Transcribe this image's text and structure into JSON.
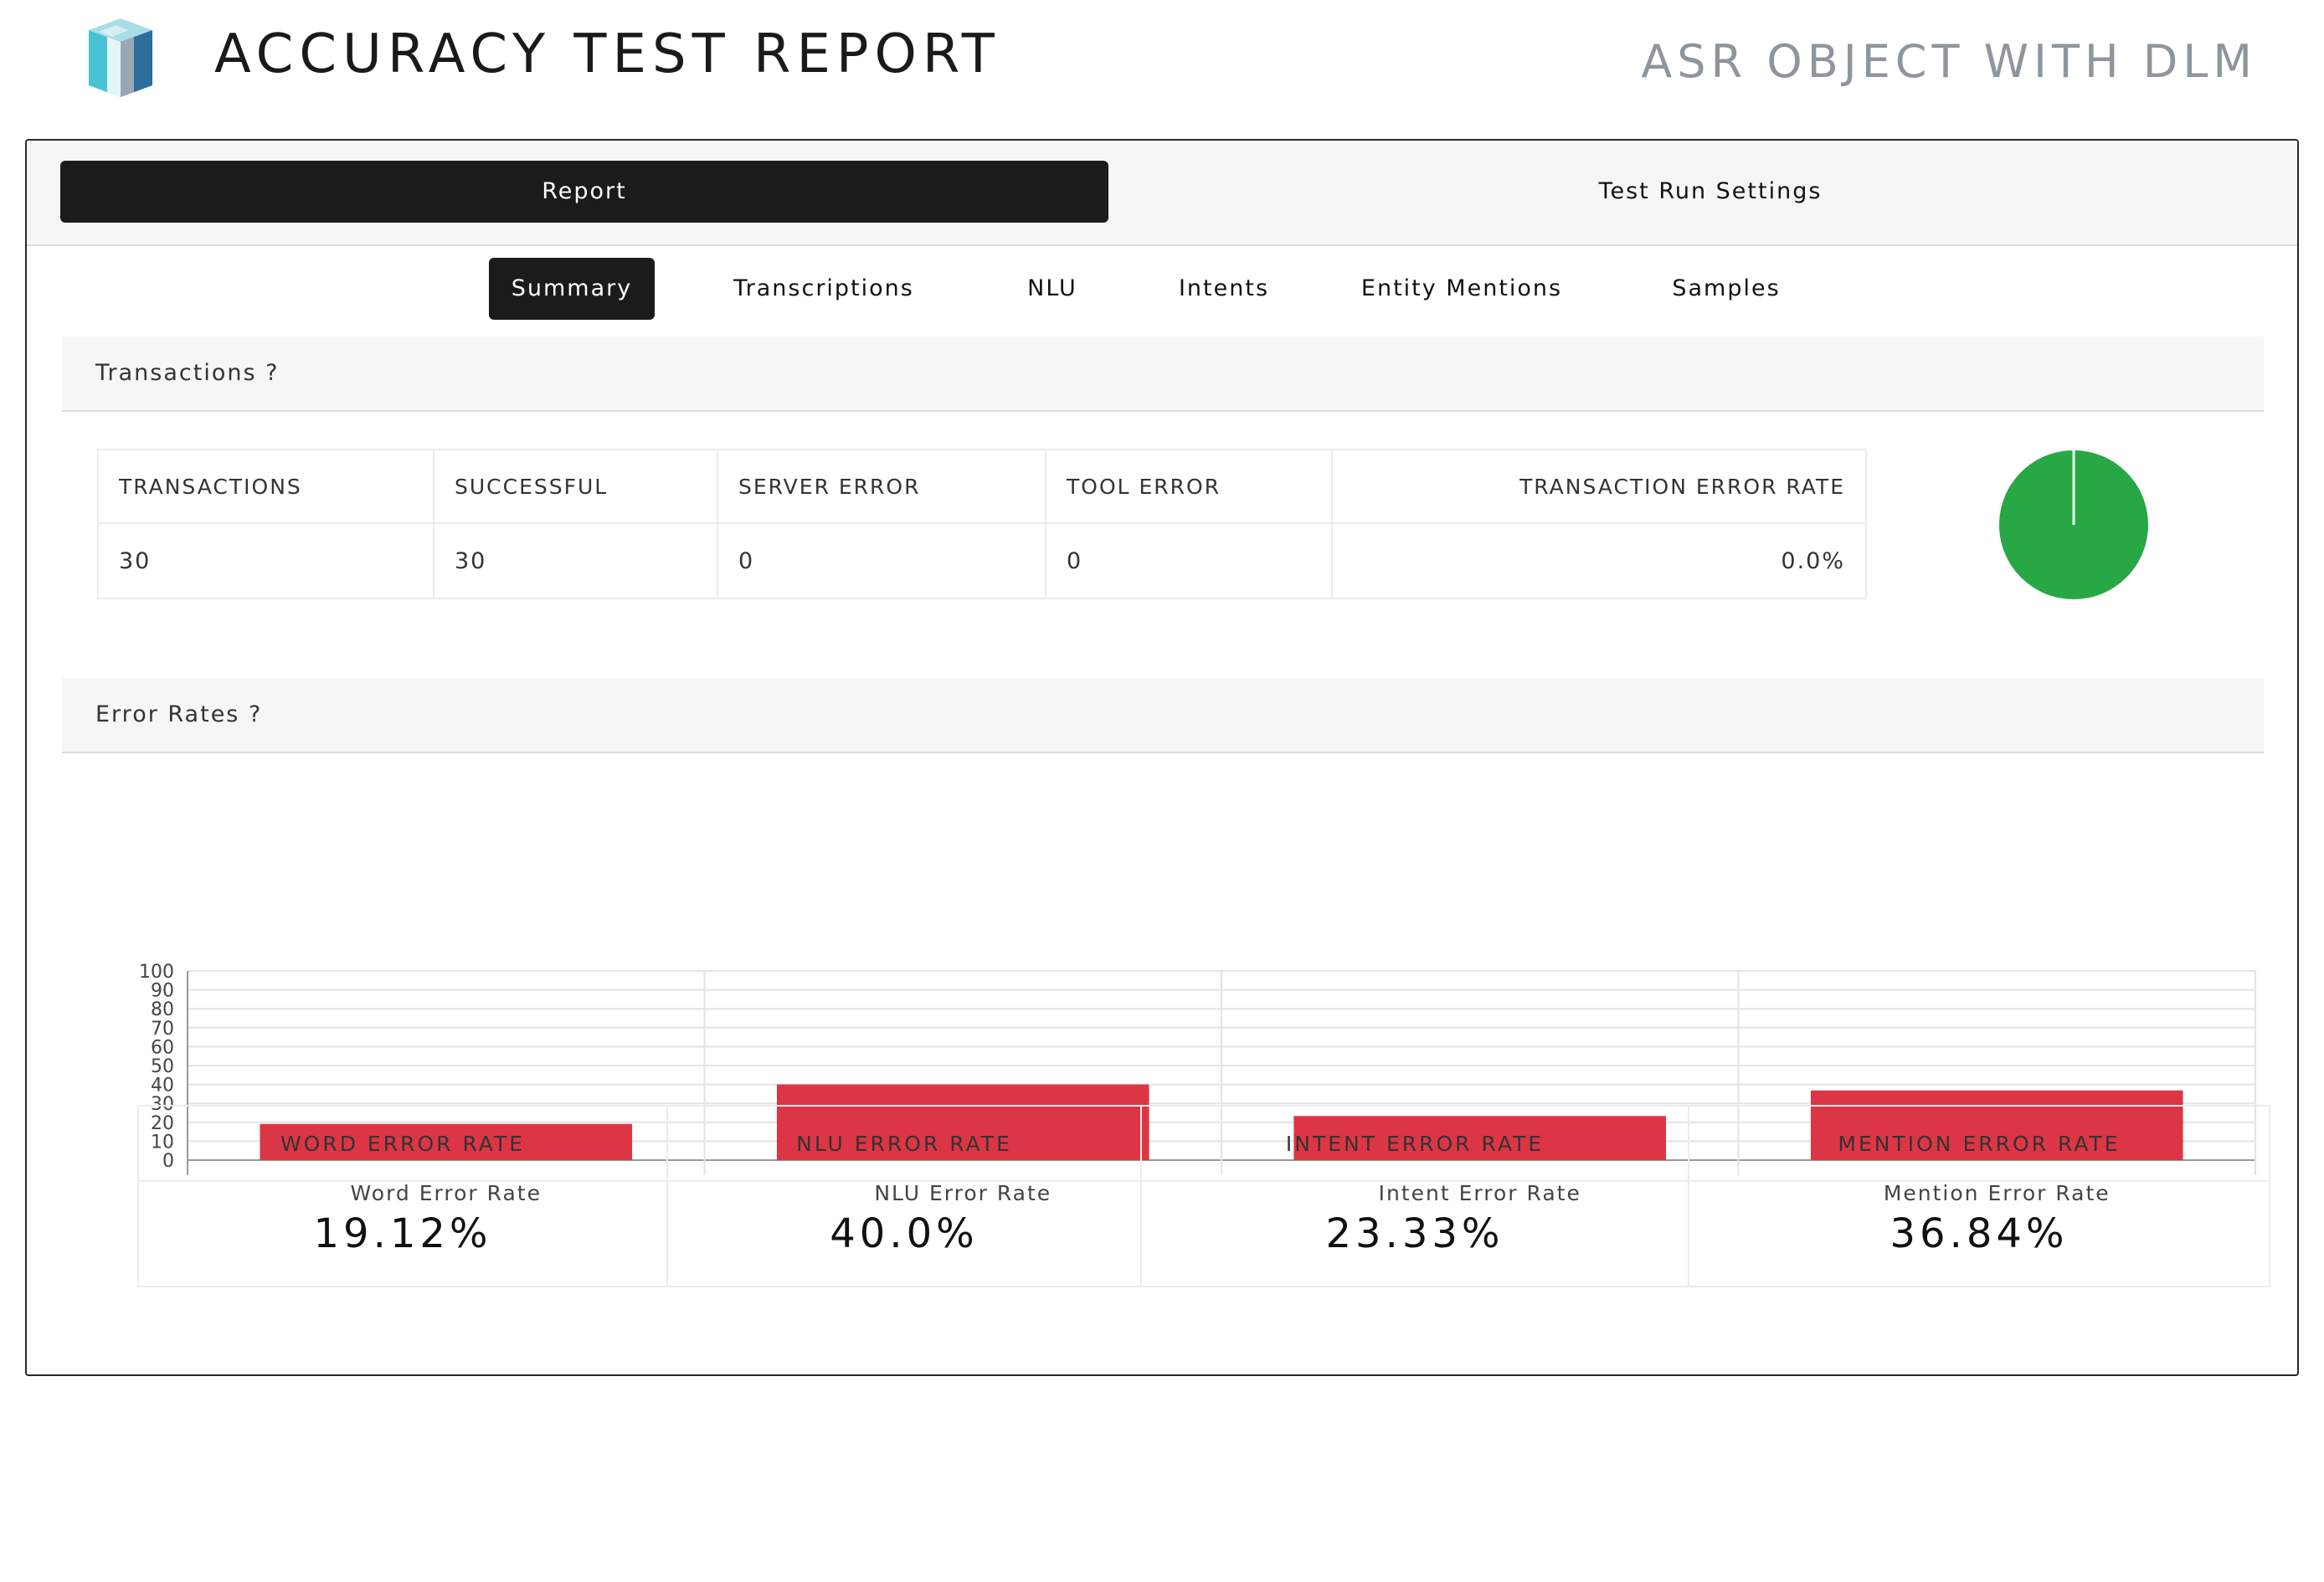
{
  "header": {
    "title": "ACCURACY TEST REPORT",
    "subtitle": "ASR OBJECT WITH DLM"
  },
  "top_tabs": [
    {
      "label": "Report",
      "active": true
    },
    {
      "label": "Test Run Settings",
      "active": false
    }
  ],
  "sub_tabs": [
    {
      "label": "Summary",
      "active": true
    },
    {
      "label": "Transcriptions",
      "active": false
    },
    {
      "label": "NLU",
      "active": false
    },
    {
      "label": "Intents",
      "active": false
    },
    {
      "label": "Entity Mentions",
      "active": false
    },
    {
      "label": "Samples",
      "active": false
    }
  ],
  "transactions": {
    "section_title": "Transactions ?",
    "headers": [
      "TRANSACTIONS",
      "SUCCESSFUL",
      "SERVER ERROR",
      "TOOL ERROR",
      "TRANSACTION ERROR RATE"
    ],
    "values": [
      "30",
      "30",
      "0",
      "0",
      "0.0%"
    ]
  },
  "error_rates": {
    "section_title": "Error Rates ?",
    "headers": [
      "WORD ERROR RATE",
      "NLU ERROR RATE",
      "INTENT ERROR RATE",
      "MENTION ERROR RATE"
    ],
    "values": [
      "19.12%",
      "40.0%",
      "23.33%",
      "36.84%"
    ]
  },
  "colors": {
    "success": "#28a745",
    "bar": "#dc3545",
    "active_tab": "#1b1b1b"
  },
  "chart_data": [
    {
      "type": "pie",
      "categories": [
        "Successful",
        "Server Error",
        "Tool Error"
      ],
      "values": [
        30,
        0,
        0
      ],
      "colors": [
        "#28a745",
        "#dc3545",
        "#ffc107"
      ]
    },
    {
      "type": "bar",
      "categories": [
        "Word Error Rate",
        "NLU Error Rate",
        "Intent Error Rate",
        "Mention Error Rate"
      ],
      "values": [
        19.12,
        40.0,
        23.33,
        36.84
      ],
      "ylim": [
        0,
        100
      ],
      "yticks": [
        0,
        10,
        20,
        30,
        40,
        50,
        60,
        70,
        80,
        90,
        100
      ],
      "grid": true,
      "color": "#dc3545"
    }
  ]
}
